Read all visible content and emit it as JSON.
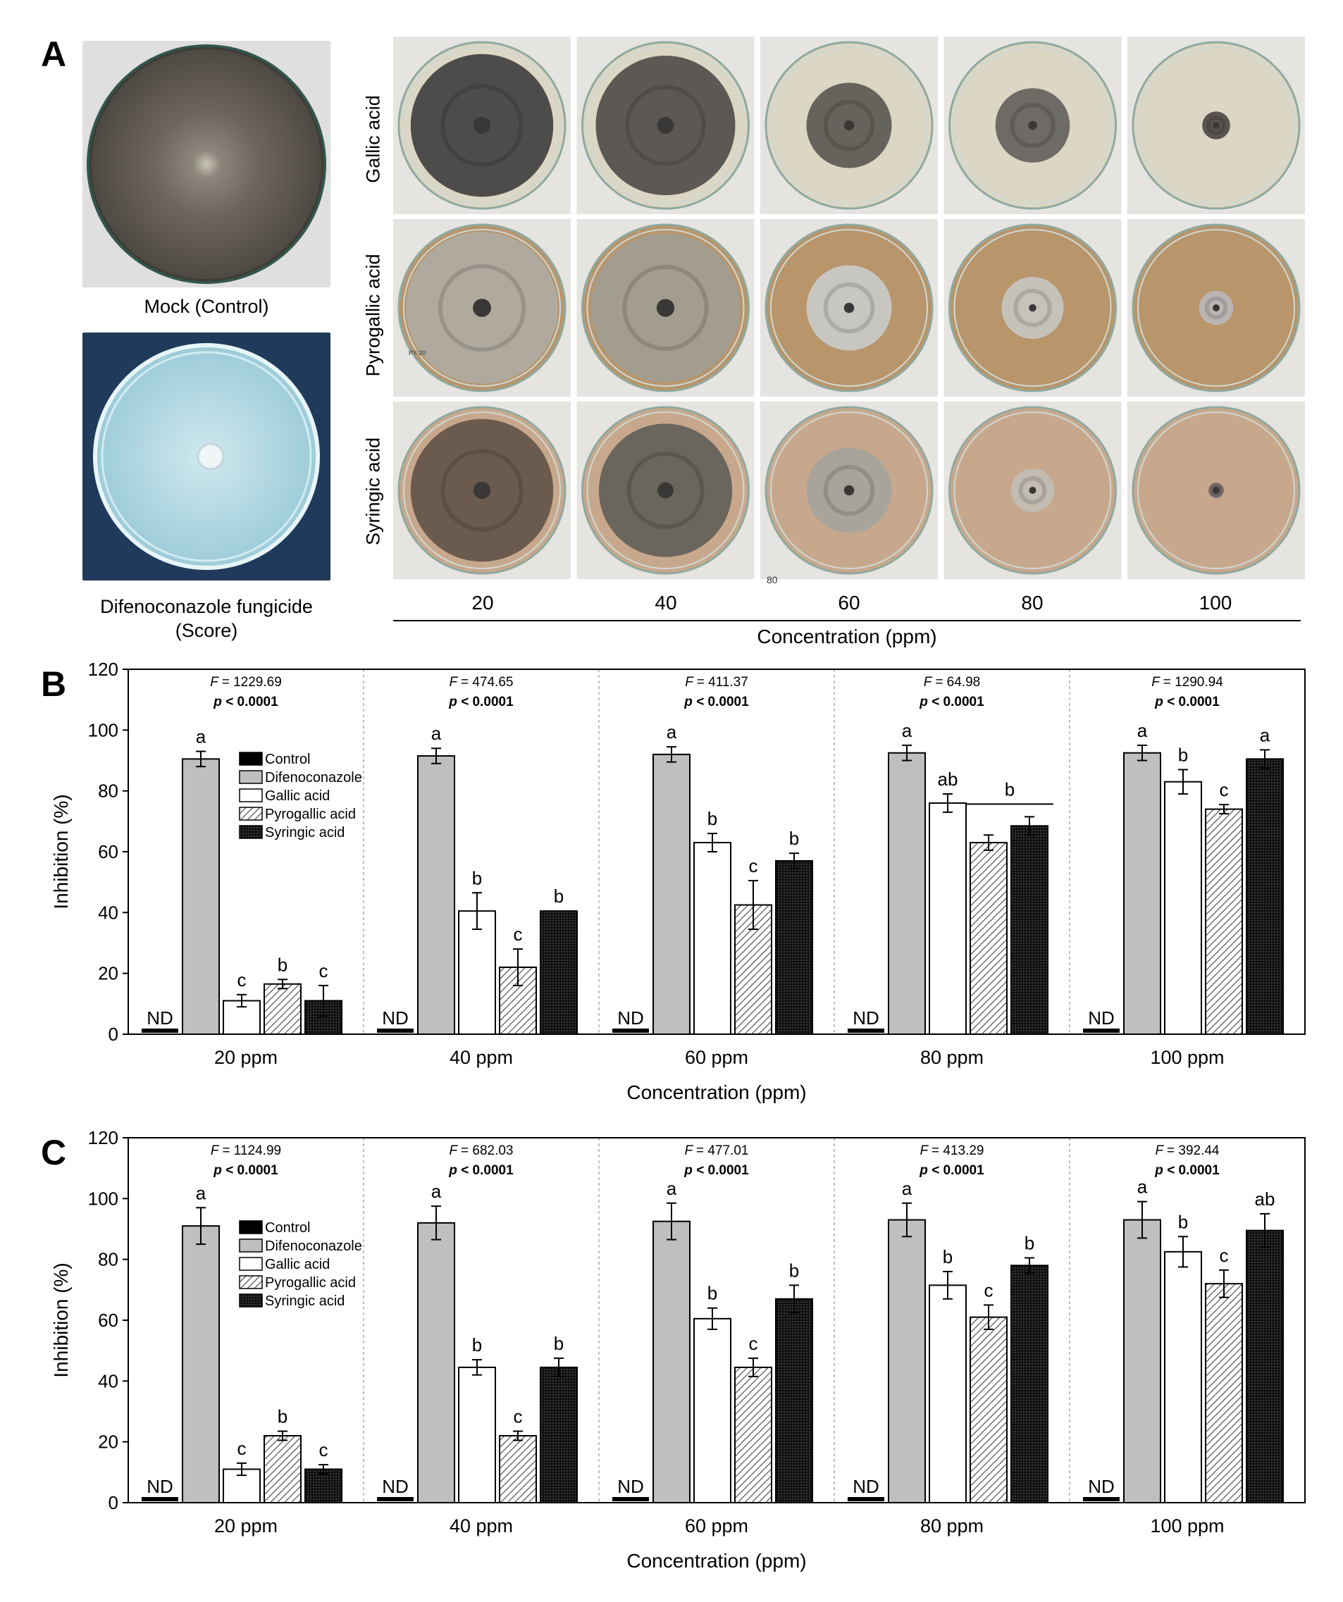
{
  "panel_a": {
    "letter": "A",
    "mock_caption": "Mock (Control)",
    "fungicide_caption_line1": "Difenoconazole fungicide",
    "fungicide_caption_line2": "(Score)",
    "rows": [
      "Gallic acid",
      "Pyrogallic acid",
      "Syringic acid"
    ],
    "concentrations": [
      "20",
      "40",
      "60",
      "80",
      "100"
    ],
    "axis_title": "Concentration (ppm)",
    "plate_label_text": "PY-20",
    "plate_label_text2": "80",
    "colors": {
      "mycelium": "#5f5b55",
      "medium_gallic": "#dcd6c4",
      "medium_pyrogallic": "#b8956a",
      "medium_syringic": "#c8a88c",
      "fungicide_bg": "#1f3a5a",
      "fungicide_plate": "#a6d2de"
    }
  },
  "chart_data": [
    {
      "type": "bar",
      "panel": "B",
      "categories": [
        "20 ppm",
        "40 ppm",
        "60 ppm",
        "80 ppm",
        "100 ppm"
      ],
      "xlabel": "Concentration (ppm)",
      "ylabel": "Inhibition (%)",
      "ylim": [
        0,
        120
      ],
      "yticks": [
        "0",
        "20",
        "40",
        "60",
        "80",
        "100",
        "120"
      ],
      "legend": [
        "Control",
        "Difenoconazole",
        "Gallic acid",
        "Pyrogallic acid",
        "Syringic acid"
      ],
      "nd_label": "ND",
      "stats": [
        {
          "F": "= 1229.69",
          "p": "< 0.0001"
        },
        {
          "F": "= 474.65",
          "p": "< 0.0001"
        },
        {
          "F": "= 411.37",
          "p": "< 0.0001"
        },
        {
          "F": "= 64.98",
          "p": "< 0.0001"
        },
        {
          "F": "= 1290.94",
          "p": "< 0.0001"
        }
      ],
      "series": [
        {
          "name": "Control",
          "values": [
            0,
            0,
            0,
            0,
            0
          ],
          "errors": [
            0,
            0,
            0,
            0,
            0
          ],
          "letters": [
            "",
            "",
            "",
            "",
            ""
          ]
        },
        {
          "name": "Difenoconazole",
          "values": [
            90.5,
            91.5,
            92,
            92.5,
            92.5
          ],
          "errors": [
            2.5,
            2.5,
            2.5,
            2.5,
            2.5
          ],
          "letters": [
            "a",
            "a",
            "a",
            "a",
            "a"
          ]
        },
        {
          "name": "Gallic acid",
          "values": [
            11,
            40.5,
            63,
            76,
            83
          ],
          "errors": [
            2,
            6,
            3,
            3,
            4
          ],
          "letters": [
            "c",
            "b",
            "b",
            "ab",
            "b"
          ]
        },
        {
          "name": "Pyrogallic acid",
          "values": [
            16.5,
            22,
            42.5,
            63,
            74
          ],
          "errors": [
            1.5,
            6,
            8,
            2.5,
            1.5
          ],
          "letters": [
            "b",
            "c",
            "c",
            "",
            "c"
          ]
        },
        {
          "name": "Syringic acid",
          "values": [
            11,
            40.5,
            57,
            68.5,
            90.5
          ],
          "errors": [
            5,
            0,
            2.5,
            3,
            3
          ],
          "letters": [
            "c",
            "b",
            "b",
            "",
            "a"
          ]
        }
      ],
      "group_letter": {
        "category_index": 3,
        "letter": "b"
      }
    },
    {
      "type": "bar",
      "panel": "C",
      "categories": [
        "20 ppm",
        "40 ppm",
        "60 ppm",
        "80 ppm",
        "100 ppm"
      ],
      "xlabel": "Concentration (ppm)",
      "ylabel": "Inhibition (%)",
      "ylim": [
        0,
        120
      ],
      "yticks": [
        "0",
        "20",
        "40",
        "60",
        "80",
        "100",
        "120"
      ],
      "legend": [
        "Control",
        "Difenoconazole",
        "Gallic acid",
        "Pyrogallic acid",
        "Syringic acid"
      ],
      "nd_label": "ND",
      "stats": [
        {
          "F": "= 1124.99",
          "p": "< 0.0001"
        },
        {
          "F": "= 682.03",
          "p": "< 0.0001"
        },
        {
          "F": "= 477.01",
          "p": "< 0.0001"
        },
        {
          "F": "= 413.29",
          "p": "< 0.0001"
        },
        {
          "F": "= 392.44",
          "p": "< 0.0001"
        }
      ],
      "series": [
        {
          "name": "Control",
          "values": [
            0,
            0,
            0,
            0,
            0
          ],
          "errors": [
            0,
            0,
            0,
            0,
            0
          ],
          "letters": [
            "",
            "",
            "",
            "",
            ""
          ]
        },
        {
          "name": "Difenoconazole",
          "values": [
            91,
            92,
            92.5,
            93,
            93
          ],
          "errors": [
            6,
            5.5,
            6,
            5.5,
            6
          ],
          "letters": [
            "a",
            "a",
            "a",
            "a",
            "a"
          ]
        },
        {
          "name": "Gallic acid",
          "values": [
            11,
            44.5,
            60.5,
            71.5,
            82.5
          ],
          "errors": [
            2,
            2.5,
            3.5,
            4.5,
            5
          ],
          "letters": [
            "c",
            "b",
            "b",
            "b",
            "b"
          ]
        },
        {
          "name": "Pyrogallic acid",
          "values": [
            22,
            22,
            44.5,
            61,
            72
          ],
          "errors": [
            1.5,
            1.5,
            3,
            4,
            4.5
          ],
          "letters": [
            "b",
            "c",
            "c",
            "c",
            "c"
          ]
        },
        {
          "name": "Syringic acid",
          "values": [
            11,
            44.5,
            67,
            78,
            89.5
          ],
          "errors": [
            1.5,
            3,
            4.5,
            2.5,
            5.5
          ],
          "letters": [
            "c",
            "b",
            "b",
            "b",
            "ab"
          ]
        }
      ]
    }
  ]
}
